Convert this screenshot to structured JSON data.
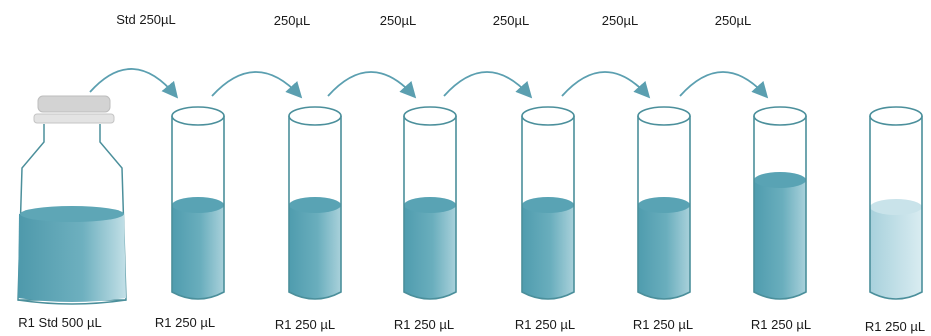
{
  "transfer_labels": [
    "Std 250µL",
    "250µL",
    "250µL",
    "250µL",
    "250µL",
    "250µL"
  ],
  "vessel_labels": [
    "R1 Std 500 µL",
    "R1 250 µL",
    "R1 250 µL",
    "R1 250 µL",
    "R1 250 µL",
    "R1 250 µL",
    "R1 250 µL",
    "R1 250 µL"
  ],
  "colors": {
    "liquid": "#5aa7b8",
    "liquid_light": "#bcdde5",
    "outline": "#4b8f9b",
    "arrow": "#5b9fb0",
    "cap": "#cfcfcf"
  },
  "icons": {
    "bottle": "reagent-bottle-icon",
    "tube": "test-tube-icon",
    "arrow": "curved-arrow-icon"
  }
}
